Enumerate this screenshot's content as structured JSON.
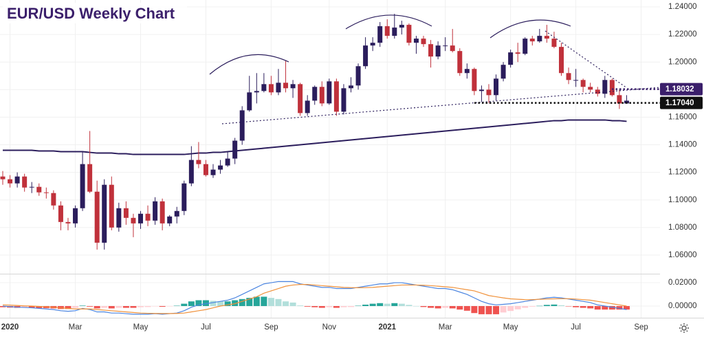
{
  "chart_data": [
    {
      "type": "candlestick",
      "title": "EUR/USD Weekly Chart",
      "open": [
        1.117,
        1.115,
        1.112,
        1.117,
        1.109,
        1.1095,
        1.1055,
        1.105,
        1.096,
        1.084,
        1.083,
        1.094,
        1.126,
        1.106,
        1.069,
        1.111,
        1.08,
        1.094,
        1.087,
        1.083,
        1.09,
        1.085,
        1.099,
        1.083,
        1.088,
        1.092,
        1.112,
        1.129,
        1.126,
        1.118,
        1.122,
        1.125,
        1.13,
        1.143,
        1.165,
        1.178,
        1.179,
        1.184,
        1.178,
        1.185,
        1.181,
        1.184,
        1.163,
        1.172,
        1.182,
        1.17,
        1.186,
        1.164,
        1.181,
        1.183,
        1.197,
        1.212,
        1.214,
        1.226,
        1.219,
        1.225,
        1.227,
        1.214,
        1.217,
        1.213,
        1.204,
        1.212,
        1.212,
        1.208,
        1.192,
        1.195,
        1.179,
        1.18,
        1.176,
        1.188,
        1.198,
        1.207,
        1.206,
        1.217,
        1.215,
        1.219,
        1.217,
        1.211,
        1.192,
        1.187,
        1.187,
        1.182,
        1.18,
        1.177,
        1.187,
        1.176,
        1.17
      ],
      "high": [
        1.121,
        1.118,
        1.12,
        1.119,
        1.113,
        1.112,
        1.109,
        1.107,
        1.099,
        1.087,
        1.096,
        1.135,
        1.15,
        1.114,
        1.115,
        1.117,
        1.098,
        1.099,
        1.09,
        1.092,
        1.096,
        1.102,
        1.101,
        1.089,
        1.095,
        1.114,
        1.139,
        1.142,
        1.129,
        1.126,
        1.129,
        1.135,
        1.145,
        1.168,
        1.19,
        1.192,
        1.192,
        1.19,
        1.195,
        1.201,
        1.187,
        1.185,
        1.176,
        1.183,
        1.186,
        1.188,
        1.188,
        1.184,
        1.189,
        1.199,
        1.218,
        1.218,
        1.229,
        1.231,
        1.235,
        1.23,
        1.228,
        1.219,
        1.219,
        1.216,
        1.215,
        1.218,
        1.224,
        1.21,
        1.199,
        1.196,
        1.183,
        1.184,
        1.191,
        1.2,
        1.209,
        1.214,
        1.218,
        1.219,
        1.224,
        1.227,
        1.222,
        1.214,
        1.196,
        1.195,
        1.188,
        1.185,
        1.182,
        1.19,
        1.188,
        1.18,
        1.176
      ],
      "low": [
        1.111,
        1.109,
        1.109,
        1.106,
        1.105,
        1.103,
        1.101,
        1.093,
        1.078,
        1.078,
        1.08,
        1.092,
        1.105,
        1.064,
        1.064,
        1.078,
        1.077,
        1.082,
        1.073,
        1.079,
        1.081,
        1.082,
        1.078,
        1.081,
        1.083,
        1.089,
        1.11,
        1.123,
        1.117,
        1.116,
        1.119,
        1.124,
        1.126,
        1.14,
        1.164,
        1.17,
        1.178,
        1.176,
        1.176,
        1.178,
        1.174,
        1.161,
        1.161,
        1.169,
        1.168,
        1.169,
        1.161,
        1.162,
        1.178,
        1.18,
        1.195,
        1.208,
        1.211,
        1.217,
        1.217,
        1.22,
        1.212,
        1.206,
        1.211,
        1.196,
        1.202,
        1.208,
        1.207,
        1.19,
        1.188,
        1.176,
        1.171,
        1.17,
        1.172,
        1.186,
        1.196,
        1.2,
        1.205,
        1.212,
        1.214,
        1.214,
        1.21,
        1.19,
        1.184,
        1.182,
        1.178,
        1.178,
        1.175,
        1.174,
        1.175,
        1.166,
        1.17
      ],
      "close": [
        1.115,
        1.112,
        1.117,
        1.109,
        1.1095,
        1.1055,
        1.105,
        1.096,
        1.084,
        1.083,
        1.094,
        1.126,
        1.106,
        1.069,
        1.111,
        1.08,
        1.094,
        1.087,
        1.083,
        1.09,
        1.085,
        1.099,
        1.083,
        1.088,
        1.092,
        1.112,
        1.129,
        1.126,
        1.118,
        1.122,
        1.125,
        1.13,
        1.143,
        1.165,
        1.178,
        1.179,
        1.184,
        1.178,
        1.185,
        1.181,
        1.184,
        1.163,
        1.172,
        1.182,
        1.17,
        1.186,
        1.164,
        1.181,
        1.183,
        1.197,
        1.212,
        1.214,
        1.226,
        1.219,
        1.225,
        1.227,
        1.214,
        1.217,
        1.213,
        1.204,
        1.212,
        1.212,
        1.208,
        1.192,
        1.195,
        1.179,
        1.18,
        1.176,
        1.188,
        1.198,
        1.207,
        1.206,
        1.217,
        1.215,
        1.219,
        1.217,
        1.211,
        1.192,
        1.187,
        1.187,
        1.182,
        1.18,
        1.177,
        1.187,
        1.176,
        1.17,
        1.172
      ],
      "up_color": "#2b1d5c",
      "down_color": "#c0313b",
      "series": [
        {
          "color": "#2b1d5c",
          "values": [
            1.136,
            1.136,
            1.136,
            1.136,
            1.136,
            1.1355,
            1.1355,
            1.1355,
            1.135,
            1.135,
            1.135,
            1.135,
            1.1345,
            1.134,
            1.134,
            1.134,
            1.1335,
            1.1335,
            1.133,
            1.133,
            1.133,
            1.133,
            1.133,
            1.133,
            1.133,
            1.133,
            1.1335,
            1.134,
            1.134,
            1.1345,
            1.1345,
            1.135,
            1.1355,
            1.136,
            1.1365,
            1.137,
            1.1375,
            1.138,
            1.1385,
            1.139,
            1.1395,
            1.14,
            1.1405,
            1.141,
            1.1415,
            1.142,
            1.1425,
            1.143,
            1.1435,
            1.144,
            1.1445,
            1.145,
            1.1455,
            1.146,
            1.1465,
            1.147,
            1.1475,
            1.148,
            1.1485,
            1.149,
            1.1495,
            1.15,
            1.1505,
            1.151,
            1.1515,
            1.152,
            1.1525,
            1.153,
            1.1535,
            1.154,
            1.1545,
            1.155,
            1.1555,
            1.156,
            1.1565,
            1.157,
            1.1575,
            1.1575,
            1.158,
            1.158,
            1.158,
            1.158,
            1.158,
            1.158,
            1.1575,
            1.1575,
            1.157
          ]
        }
      ],
      "price_lines": [
        {
          "value": 1.18032,
          "label": "1.18032",
          "color": "#3b1f6b"
        },
        {
          "value": 1.1704,
          "label": "1.17040",
          "color": "#111111"
        }
      ],
      "xlim": [
        -0.38,
        90.6
      ],
      "xticks": [
        {
          "value": 1,
          "label": "2020"
        },
        {
          "value": 10,
          "label": "Mar"
        },
        {
          "value": 19,
          "label": "May"
        },
        {
          "value": 28,
          "label": "Jul"
        },
        {
          "value": 37,
          "label": "Sep"
        },
        {
          "value": 45,
          "label": "Nov"
        },
        {
          "value": 53,
          "label": "2021"
        },
        {
          "value": 61,
          "label": "Mar"
        },
        {
          "value": 70,
          "label": "May"
        },
        {
          "value": 79,
          "label": "Jul"
        },
        {
          "value": 88,
          "label": "Sep"
        }
      ],
      "ylim": [
        1.0465,
        1.245
      ],
      "yticks": [
        {
          "value": 1.06,
          "label": "1.06000"
        },
        {
          "value": 1.08,
          "label": "1.08000"
        },
        {
          "value": 1.1,
          "label": "1.10000"
        },
        {
          "value": 1.12,
          "label": "1.12000"
        },
        {
          "value": 1.14,
          "label": "1.14000"
        },
        {
          "value": 1.16,
          "label": "1.16000"
        },
        {
          "value": 1.18,
          "label": "1.18000"
        },
        {
          "value": 1.2,
          "label": "1.20000"
        },
        {
          "value": 1.22,
          "label": "1.22000"
        },
        {
          "value": 1.24,
          "label": "1.24000"
        }
      ],
      "grid": true
    },
    {
      "type": "macd",
      "ylim": [
        -0.01,
        0.0265
      ],
      "yticks": [
        {
          "value": 0,
          "label": "0.00000"
        },
        {
          "value": 0.02,
          "label": "0.02000"
        }
      ],
      "histogram": [
        -0.001,
        -0.0013,
        -0.0015,
        -0.0014,
        -0.0015,
        -0.0017,
        -0.0018,
        -0.002,
        -0.0025,
        -0.0025,
        -0.0015,
        0.0004,
        -0.0005,
        -0.002,
        -0.0015,
        -0.002,
        -0.0015,
        -0.0015,
        -0.0015,
        -0.001,
        -0.0008,
        -0.0002,
        -0.0006,
        -0.0001,
        0.0003,
        0.002,
        0.004,
        0.005,
        0.005,
        0.0045,
        0.004,
        0.004,
        0.005,
        0.006,
        0.007,
        0.008,
        0.008,
        0.007,
        0.006,
        0.004,
        0.003,
        0.0005,
        -0.0005,
        -0.001,
        -0.0015,
        -0.001,
        -0.0015,
        -0.001,
        -0.0008,
        0.0003,
        0.0012,
        0.002,
        0.0025,
        0.002,
        0.0025,
        0.002,
        0.001,
        0,
        -0.0008,
        -0.0015,
        -0.002,
        -0.0015,
        -0.002,
        -0.003,
        -0.004,
        -0.006,
        -0.007,
        -0.007,
        -0.007,
        -0.0055,
        -0.0042,
        -0.0028,
        -0.0015,
        -0.0005,
        0.0002,
        0.001,
        0.0013,
        0.0007,
        -0.0003,
        -0.001,
        -0.0015,
        -0.002,
        -0.003,
        -0.003,
        -0.003,
        -0.003,
        -0.003
      ],
      "histogram_colors": [
        "#26a69a",
        "#b2dfdb",
        "#ef5350",
        "#ffcdd2"
      ],
      "series": [
        {
          "color": "#4a84e0",
          "values": [
            0,
            -0.0005,
            -0.001,
            -0.0012,
            -0.0015,
            -0.002,
            -0.0025,
            -0.003,
            -0.004,
            -0.0045,
            -0.004,
            -0.002,
            -0.003,
            -0.005,
            -0.005,
            -0.006,
            -0.006,
            -0.0065,
            -0.007,
            -0.007,
            -0.007,
            -0.0065,
            -0.007,
            -0.0065,
            -0.006,
            -0.004,
            -0.001,
            0.001,
            0.002,
            0.003,
            0.004,
            0.005,
            0.007,
            0.01,
            0.013,
            0.016,
            0.019,
            0.02,
            0.021,
            0.021,
            0.021,
            0.019,
            0.018,
            0.017,
            0.016,
            0.016,
            0.015,
            0.015,
            0.015,
            0.016,
            0.017,
            0.018,
            0.019,
            0.019,
            0.02,
            0.02,
            0.019,
            0.018,
            0.017,
            0.016,
            0.015,
            0.015,
            0.014,
            0.012,
            0.01,
            0.007,
            0.004,
            0.002,
            0.001,
            0.0015,
            0.002,
            0.003,
            0.004,
            0.005,
            0.006,
            0.007,
            0.0075,
            0.007,
            0.006,
            0.005,
            0.004,
            0.003,
            0.001,
            0,
            -0.001,
            -0.002,
            -0.003
          ]
        },
        {
          "color": "#f0913a",
          "values": [
            0.001,
            0.0008,
            0.0005,
            0.0002,
            0,
            -0.0003,
            -0.0007,
            -0.001,
            -0.0015,
            -0.002,
            -0.0025,
            -0.0024,
            -0.0025,
            -0.003,
            -0.0035,
            -0.004,
            -0.0045,
            -0.005,
            -0.0055,
            -0.006,
            -0.0062,
            -0.0063,
            -0.0064,
            -0.0064,
            -0.0063,
            -0.006,
            -0.005,
            -0.004,
            -0.003,
            -0.0015,
            0,
            0.001,
            0.002,
            0.004,
            0.006,
            0.008,
            0.011,
            0.013,
            0.015,
            0.017,
            0.018,
            0.0185,
            0.0185,
            0.018,
            0.0175,
            0.017,
            0.0165,
            0.016,
            0.0158,
            0.0157,
            0.0158,
            0.016,
            0.0165,
            0.017,
            0.0175,
            0.018,
            0.018,
            0.018,
            0.0178,
            0.0175,
            0.017,
            0.0165,
            0.016,
            0.015,
            0.014,
            0.013,
            0.011,
            0.009,
            0.008,
            0.007,
            0.0062,
            0.0058,
            0.0055,
            0.0055,
            0.0058,
            0.006,
            0.0062,
            0.0063,
            0.0063,
            0.006,
            0.0055,
            0.005,
            0.004,
            0.003,
            0.002,
            0.001,
            0
          ]
        }
      ]
    }
  ]
}
